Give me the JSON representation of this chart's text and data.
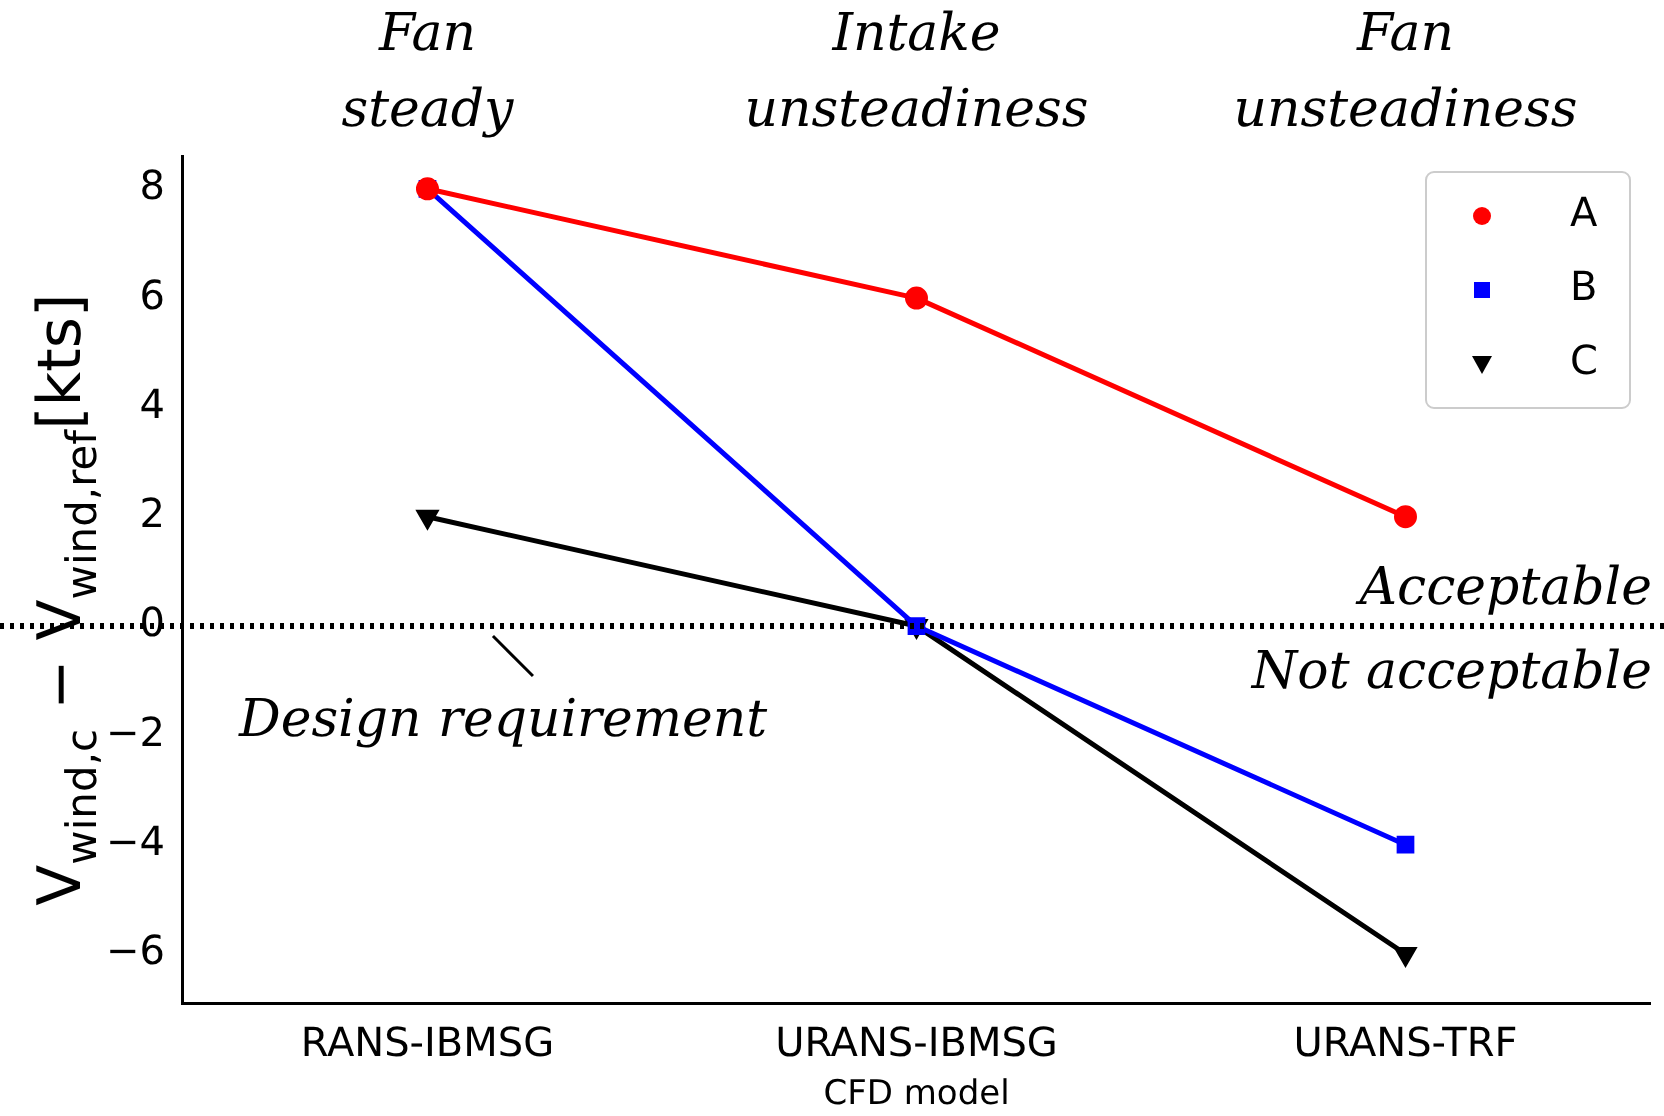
{
  "chart_data": {
    "type": "line",
    "xlabel": "CFD model",
    "ylabel": "V$_{wind,c}$ − V$_{wind,ref}$[kts]",
    "categories": [
      "RANS-IBMSG",
      "URANS-IBMSG",
      "URANS-TRF"
    ],
    "series": [
      {
        "name": "A",
        "color": "#ff0000",
        "values": [
          8,
          6,
          2
        ],
        "marker": "circle"
      },
      {
        "name": "B",
        "color": "#0000ff",
        "values": [
          8,
          0,
          -4
        ],
        "marker": "square"
      },
      {
        "name": "C",
        "color": "#000000",
        "values": [
          2,
          0,
          -6
        ],
        "marker": "triangle"
      }
    ],
    "ylim": [
      -6.9,
      8.6
    ],
    "yticks": [
      -6,
      -4,
      -2,
      0,
      2,
      4,
      6,
      8
    ],
    "grid": false,
    "legend": "top right",
    "line_style": "solid",
    "ref_lines": [
      {
        "axis": "y",
        "value": 0,
        "label": "Design requirement",
        "color": "#000000",
        "line_style": "dotted"
      }
    ],
    "annotations": [
      "Fan steady",
      "Intake unsteadiness",
      "Fan unsteadiness",
      "Acceptable",
      "Not acceptable"
    ]
  }
}
